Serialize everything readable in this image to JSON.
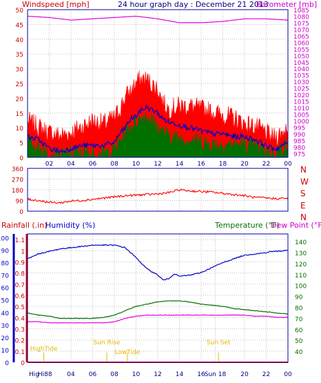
{
  "header": {
    "title": "24 hour graph day : December 21 2013",
    "left_label": "Windspeed [mph]",
    "right_label": "Barometer [mb]"
  },
  "colors": {
    "frame": "#0000aa",
    "grid": "#bdbdbd",
    "axis_text": "#000080",
    "wind_red": "#ff0000",
    "baro_magenta": "#e000e0",
    "avg_blue": "#0000c8",
    "green": "#007000",
    "dark_red": "#cc0000",
    "yellow": "#e6b800"
  },
  "chart_data": [
    {
      "id": "wind_baro",
      "type": "line",
      "x_ticks": [
        "02",
        "04",
        "06",
        "08",
        "10",
        "12",
        "14",
        "16",
        "18",
        "20",
        "22",
        "00"
      ],
      "x_range_hours": [
        0,
        24
      ],
      "ylim": [
        0,
        50
      ],
      "y_ticks": [
        0,
        5,
        10,
        15,
        20,
        25,
        30,
        35,
        40,
        45,
        50
      ],
      "y2lim": [
        972,
        1085
      ],
      "y2_ticks": [
        975,
        980,
        985,
        990,
        995,
        1000,
        1005,
        1010,
        1015,
        1020,
        1025,
        1030,
        1035,
        1040,
        1045,
        1050,
        1055,
        1060,
        1065,
        1070,
        1075,
        1080,
        1085
      ],
      "grid": true,
      "series": [
        {
          "key": "gust",
          "color": "#ff0000",
          "axis": "left",
          "style": "fill",
          "x": [
            0,
            1,
            2,
            3,
            4,
            5,
            6,
            7,
            8,
            8.5,
            9,
            9.5,
            10,
            10.5,
            11,
            11.5,
            12,
            12.5,
            13,
            14,
            15,
            16,
            17,
            18,
            19,
            20,
            21,
            22,
            22.5,
            23,
            23.5,
            24
          ],
          "values": [
            12,
            10,
            8,
            7,
            8,
            10,
            12,
            11,
            13,
            16,
            20,
            22,
            25,
            26,
            26,
            24,
            23,
            18,
            16,
            17,
            17,
            16,
            15,
            14,
            13,
            11,
            10,
            8,
            6,
            7,
            8,
            11
          ]
        },
        {
          "key": "avg",
          "color": "#0000c8",
          "axis": "left",
          "style": "line",
          "x": [
            0,
            1,
            2,
            3,
            4,
            5,
            6,
            7,
            8,
            8.5,
            9,
            9.5,
            10,
            10.5,
            11,
            11.5,
            12,
            12.5,
            13,
            14,
            15,
            16,
            17,
            18,
            19,
            20,
            21,
            22,
            22.5,
            23,
            23.5,
            24
          ],
          "values": [
            7,
            6,
            3,
            2,
            3,
            4,
            4,
            4,
            5,
            8,
            10,
            13,
            14,
            16,
            17,
            16,
            15,
            13,
            12,
            11,
            10,
            9,
            8,
            8,
            7,
            7,
            6,
            4,
            3,
            3,
            4,
            5
          ]
        },
        {
          "key": "wind_low",
          "color": "#007000",
          "axis": "left",
          "style": "fill",
          "x": [
            0,
            1,
            2,
            3,
            4,
            5,
            6,
            7,
            8,
            8.5,
            9,
            9.5,
            10,
            10.5,
            11,
            11.5,
            12,
            12.5,
            13,
            14,
            15,
            16,
            17,
            18,
            19,
            20,
            21,
            22,
            22.5,
            23,
            23.5,
            24
          ],
          "values": [
            5,
            3,
            1,
            0,
            1,
            1,
            1,
            1,
            2,
            5,
            8,
            10,
            12,
            13,
            14,
            12,
            10,
            8,
            7,
            6,
            6,
            5,
            4,
            4,
            4,
            4,
            3,
            2,
            1,
            2,
            3,
            4
          ]
        },
        {
          "key": "barometer",
          "color": "#e000e0",
          "axis": "right",
          "style": "line",
          "x": [
            0,
            2,
            4,
            6,
            8,
            10,
            12,
            14,
            16,
            18,
            20,
            22,
            24
          ],
          "values": [
            1080,
            1079,
            1077,
            1078,
            1079,
            1080,
            1078,
            1075,
            1075,
            1076,
            1078,
            1078,
            1077
          ]
        }
      ]
    },
    {
      "id": "direction",
      "type": "line",
      "x_range_hours": [
        0,
        24
      ],
      "ylim": [
        0,
        360
      ],
      "y_ticks": [
        0,
        90,
        180,
        270,
        360
      ],
      "compass": [
        "N",
        "W",
        "S",
        "E",
        "N"
      ],
      "series": [
        {
          "key": "direction",
          "color": "#ff0000",
          "x": [
            0,
            1,
            2,
            3,
            4,
            5,
            6,
            7,
            8,
            9,
            10,
            11,
            12,
            13,
            14,
            15,
            16,
            17,
            18,
            19,
            20,
            21,
            22,
            23,
            24
          ],
          "values": [
            100,
            90,
            75,
            70,
            85,
            90,
            100,
            110,
            120,
            130,
            135,
            140,
            145,
            155,
            180,
            170,
            165,
            160,
            150,
            140,
            130,
            115,
            110,
            105,
            110
          ]
        }
      ]
    },
    {
      "id": "temp_hum",
      "type": "line",
      "x_ticks": [
        "Hig",
        "Hi88",
        "04",
        "06",
        "08",
        "10",
        "12",
        "14",
        "16",
        "Sun 18",
        "20",
        "22",
        "00"
      ],
      "x_tick_hours": [
        0.6,
        1.6,
        4,
        6,
        8,
        10,
        12,
        14,
        16,
        17.3,
        20,
        22,
        24
      ],
      "x_range_hours": [
        0,
        24
      ],
      "left_label": "Rainfall (.in)",
      "humidity_label": "Humidity (%)",
      "temp_label": "Temperature (°F)",
      "dew_label": "Dew Point (°F)",
      "rain_lim": [
        0,
        1.15
      ],
      "rain_ticks": [
        0,
        0.1,
        0.2,
        0.3,
        0.4,
        0.5,
        0.6,
        0.7,
        0.8,
        0.9,
        1,
        1.1
      ],
      "humidity_lim": [
        0,
        103
      ],
      "humidity_ticks": [
        0,
        10,
        20,
        30,
        40,
        50,
        60,
        70,
        80,
        90,
        100
      ],
      "temp_lim": [
        30,
        147
      ],
      "temp_ticks": [
        40,
        50,
        60,
        70,
        80,
        90,
        100,
        110,
        120,
        130,
        140
      ],
      "annotations": [
        {
          "label": "HighTide",
          "x": 1.5
        },
        {
          "label": "Sun Rise",
          "x": 7.3
        },
        {
          "label": "LowTide",
          "x": 9.2
        },
        {
          "label": "Sun Set",
          "x": 17.6
        }
      ],
      "series": [
        {
          "key": "humidity",
          "color": "#0000c8",
          "axis": "humidity",
          "x": [
            0,
            1,
            2,
            3,
            4,
            5,
            6,
            7,
            8,
            9,
            10,
            11,
            12,
            12.5,
            13,
            13.5,
            14,
            15,
            16,
            17,
            18,
            19,
            20,
            21,
            22,
            22.5,
            23,
            24
          ],
          "values": [
            83,
            87,
            89,
            91,
            92,
            93,
            94,
            94,
            94,
            92,
            84,
            75,
            70,
            66,
            67,
            71,
            69,
            70,
            72,
            76,
            80,
            83,
            86,
            87,
            88,
            89,
            89,
            90
          ]
        },
        {
          "key": "temperature",
          "color": "#007000",
          "axis": "temp",
          "x": [
            0,
            1,
            2,
            3,
            4,
            5,
            6,
            7,
            8,
            9,
            10,
            11,
            12,
            13,
            14,
            15,
            16,
            17,
            18,
            19,
            20,
            21,
            22,
            23,
            24
          ],
          "values": [
            75,
            73,
            72,
            70,
            70,
            70,
            70,
            71,
            73,
            77,
            81,
            83,
            85,
            86,
            86,
            85,
            83,
            82,
            81,
            79,
            78,
            77,
            76,
            75,
            74
          ]
        },
        {
          "key": "dewpoint",
          "color": "#e000e0",
          "axis": "temp",
          "x": [
            0,
            1,
            2,
            3,
            4,
            5,
            6,
            7,
            8,
            9,
            10,
            11,
            12,
            13,
            14,
            15,
            16,
            17,
            18,
            19,
            20,
            21,
            22,
            23,
            24
          ],
          "values": [
            67,
            67,
            66,
            66,
            66,
            66,
            66,
            66,
            67,
            70,
            72,
            73,
            73,
            73,
            73,
            73,
            73,
            73,
            73,
            73,
            73,
            72,
            72,
            71,
            71
          ]
        }
      ]
    }
  ]
}
